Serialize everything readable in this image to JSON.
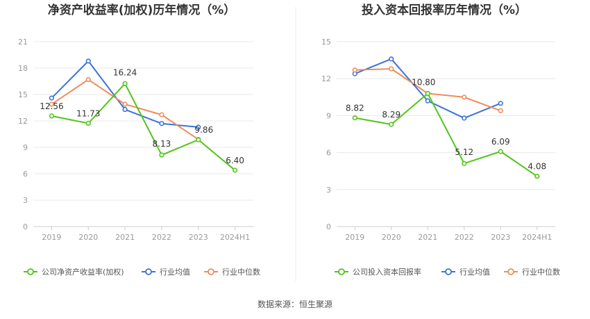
{
  "source_label": "数据来源：恒生聚源",
  "chart_data": [
    {
      "type": "line",
      "title": "净资产收益率(加权)历年情况（%）",
      "categories": [
        "2019",
        "2020",
        "2021",
        "2022",
        "2023",
        "2024H1"
      ],
      "ylim": [
        0,
        21
      ],
      "yticks": [
        0,
        3,
        6,
        9,
        12,
        15,
        18,
        21
      ],
      "grid": true,
      "legend_position": "bottom",
      "series": [
        {
          "name": "公司净资产收益率(加权)",
          "color": "#52c41a",
          "values": [
            12.56,
            11.73,
            16.24,
            8.13,
            9.86,
            6.4
          ],
          "labels": [
            "12.56",
            "11.73",
            "16.24",
            "8.13",
            "9.86",
            "6.40"
          ]
        },
        {
          "name": "行业均值",
          "color": "#3b73d9",
          "values": [
            14.6,
            18.8,
            13.3,
            11.7,
            11.3,
            null
          ]
        },
        {
          "name": "行业中位数",
          "color": "#f08c5a",
          "values": [
            13.9,
            16.7,
            13.9,
            12.7,
            9.9,
            null
          ]
        }
      ]
    },
    {
      "type": "line",
      "title": "投入资本回报率历年情况（%）",
      "categories": [
        "2019",
        "2020",
        "2021",
        "2022",
        "2023",
        "2024H1"
      ],
      "ylim": [
        0,
        15
      ],
      "yticks": [
        0,
        3,
        6,
        9,
        12,
        15
      ],
      "grid": true,
      "legend_position": "bottom",
      "series": [
        {
          "name": "公司投入资本回报率",
          "color": "#52c41a",
          "values": [
            8.82,
            8.29,
            10.8,
            5.12,
            6.09,
            4.08
          ],
          "labels": [
            "8.82",
            "8.29",
            "10.80",
            "5.12",
            "6.09",
            "4.08"
          ]
        },
        {
          "name": "行业均值",
          "color": "#3b73d9",
          "values": [
            12.4,
            13.6,
            10.2,
            8.8,
            10.0,
            null
          ]
        },
        {
          "name": "行业中位数",
          "color": "#f08c5a",
          "values": [
            12.7,
            12.8,
            10.8,
            10.5,
            9.4,
            null
          ]
        }
      ]
    }
  ]
}
